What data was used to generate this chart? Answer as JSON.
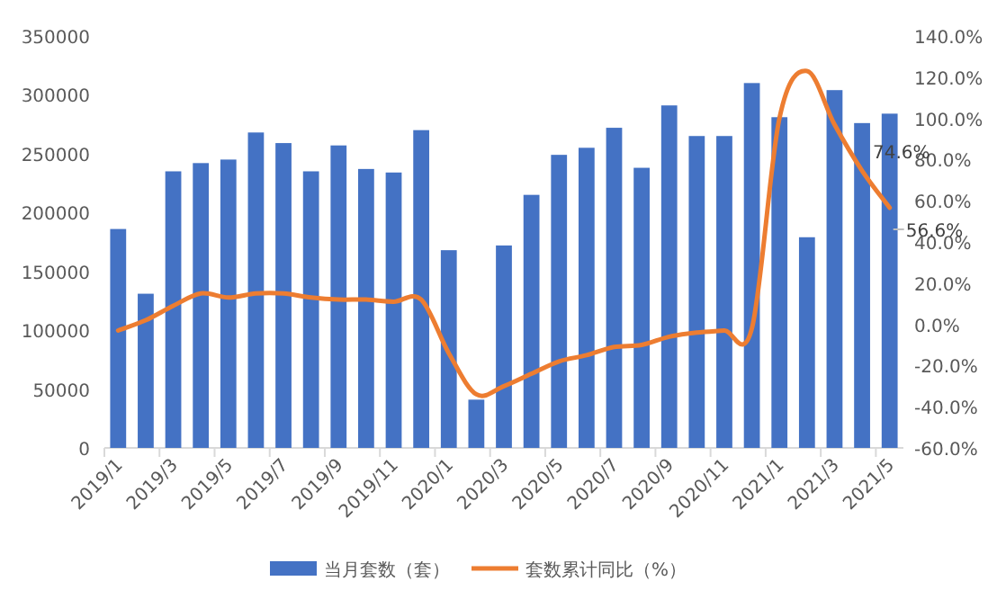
{
  "chart_data": {
    "type": "bar",
    "categories": [
      "2019/1",
      null,
      "2019/3",
      null,
      "2019/5",
      null,
      "2019/7",
      null,
      "2019/9",
      null,
      "2019/11",
      null,
      "2020/1",
      null,
      "2020/3",
      null,
      "2020/5",
      null,
      "2020/7",
      null,
      "2020/9",
      null,
      "2020/11",
      null,
      "2021/1",
      null,
      "2021/3",
      null,
      "2021/5"
    ],
    "series": [
      {
        "name": "当月套数（套）",
        "color": "#4472c4",
        "values": [
          186000,
          131000,
          235000,
          242000,
          245000,
          268000,
          259000,
          235000,
          257000,
          237000,
          234000,
          270000,
          168000,
          41000,
          172000,
          215000,
          249000,
          255000,
          272000,
          238000,
          291000,
          265000,
          265000,
          310000,
          281000,
          179000,
          304000,
          276000,
          284000
        ]
      },
      {
        "name": "套数累计同比（%）",
        "type": "line",
        "axis": "y2",
        "color": "#ed7d31",
        "values": [
          -3,
          2,
          9,
          15,
          13,
          15,
          15,
          13,
          12,
          12,
          11,
          12,
          -14,
          -34,
          -30,
          -24,
          -18,
          -15,
          -11,
          -10,
          -6,
          -4,
          -3,
          -2,
          100,
          123,
          97,
          74.6,
          56.6
        ],
        "value_labels": [
          null,
          null,
          null,
          null,
          null,
          null,
          null,
          null,
          null,
          null,
          null,
          null,
          null,
          null,
          null,
          null,
          null,
          null,
          null,
          null,
          null,
          null,
          null,
          null,
          null,
          null,
          null,
          "74.6%",
          "56.6%"
        ]
      }
    ],
    "ylim": [
      0,
      350000
    ],
    "yticks": [
      0,
      50000,
      100000,
      150000,
      200000,
      250000,
      300000,
      350000
    ],
    "y2lim": [
      -60,
      140
    ],
    "y2ticks": [
      {
        "value": -60,
        "label": "-60.0%"
      },
      {
        "value": -40,
        "label": "-40.0%"
      },
      {
        "value": -20,
        "label": "-20.0%"
      },
      {
        "value": 0,
        "label": "0.0%"
      },
      {
        "value": 20,
        "label": "20.0%"
      },
      {
        "value": 40,
        "label": "40.0%"
      },
      {
        "value": 60,
        "label": "60.0%"
      },
      {
        "value": 80,
        "label": "80.0%"
      },
      {
        "value": 100,
        "label": "100.0%"
      },
      {
        "value": 120,
        "label": "120.0%"
      },
      {
        "value": 140,
        "label": "140.0%"
      }
    ],
    "legend": "bottom"
  }
}
